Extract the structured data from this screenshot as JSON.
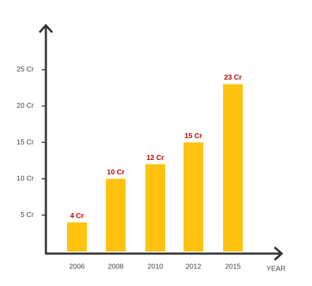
{
  "chart_data": {
    "type": "bar",
    "x_label": "YEAR",
    "categories": [
      "2006",
      "2008",
      "2010",
      "2012",
      "2015"
    ],
    "values": [
      4,
      10,
      12,
      15,
      23
    ],
    "value_labels": [
      "4 Cr",
      "10 Cr",
      "12 Cr",
      "15 Cr",
      "23 Cr"
    ],
    "color": "#ffc20e",
    "ylim": [
      0,
      31
    ],
    "yticks": [
      {
        "value": 5,
        "label": "5 Cr"
      },
      {
        "value": 10,
        "label": "10 Cr"
      },
      {
        "value": 15,
        "label": "15 Cr"
      },
      {
        "value": 20,
        "label": "20 Cr"
      },
      {
        "value": 25,
        "label": "25 Cr"
      }
    ]
  }
}
